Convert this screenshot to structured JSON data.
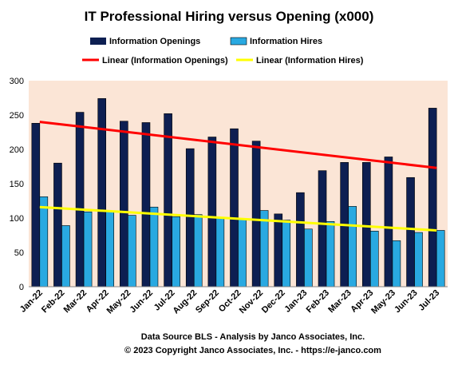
{
  "chart_data": {
    "type": "bar",
    "title": "IT Professional Hiring versus Opening (x000)",
    "categories": [
      "Jan-22",
      "Feb-22",
      "Mar-22",
      "Apr-22",
      "May-22",
      "Jun-22",
      "Jul-22",
      "Aug-22",
      "Sep-22",
      "Oct-22",
      "Nov-22",
      "Dec-22",
      "Jan-23",
      "Feb-23",
      "Mar-23",
      "Apr-23",
      "May-23",
      "Jun-23",
      "Jul-23"
    ],
    "series": [
      {
        "name": "Information Openings",
        "color": "#0d1f52",
        "values": [
          238,
          180,
          254,
          274,
          241,
          239,
          252,
          201,
          218,
          230,
          212,
          106,
          137,
          169,
          181,
          181,
          189,
          159,
          260
        ]
      },
      {
        "name": "Information Hires",
        "color": "#29a9e1",
        "values": [
          131,
          89,
          109,
          109,
          104,
          116,
          102,
          105,
          101,
          98,
          111,
          97,
          84,
          95,
          117,
          81,
          67,
          79,
          82
        ]
      }
    ],
    "trendlines": [
      {
        "name": "Linear (Information Openings)",
        "color": "#ff0000",
        "start": 240,
        "end": 173
      },
      {
        "name": "Linear (Information Hires)",
        "color": "#ffff00",
        "start": 116,
        "end": 82
      }
    ],
    "ylim": [
      0,
      300
    ],
    "yticks": [
      0,
      50,
      100,
      150,
      200,
      250,
      300
    ],
    "grid": false,
    "legend_position": "top",
    "plot_background": "#fbe5d6",
    "footer_lines": [
      "Data Source BLS - Analysis  by Janco Associates, Inc.",
      "© 2023 Copyright Janco Associates, Inc. - https://e-janco.com"
    ]
  }
}
